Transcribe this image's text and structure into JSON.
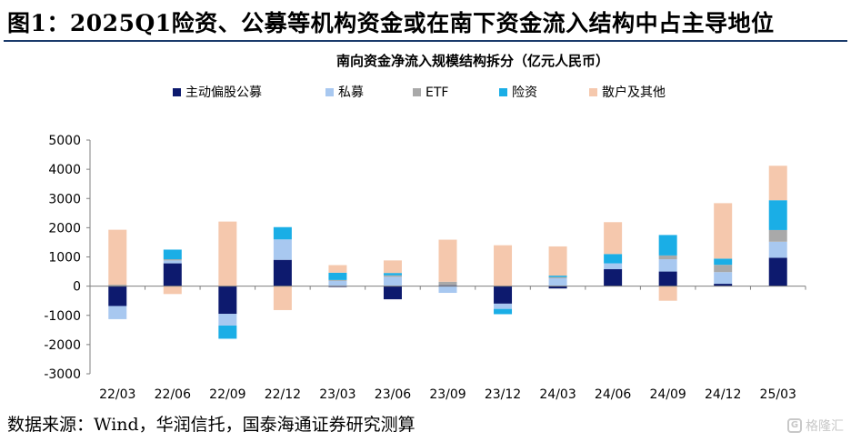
{
  "figure": {
    "title": "图1：2025Q1险资、公募等机构资金或在南下资金流入结构中占主导地位",
    "source": "数据来源：Wind，华润信托，国泰海通证券研究测算",
    "watermark": "格隆汇"
  },
  "chart_data": {
    "type": "bar",
    "stacked": true,
    "title": "南向资金净流入规模结构拆分（亿元人民币）",
    "xlabel": "",
    "ylabel": "",
    "ylim": [
      -3000,
      5000
    ],
    "yticks": [
      -3000,
      -2000,
      -1000,
      0,
      1000,
      2000,
      3000,
      4000,
      5000
    ],
    "legend_position": "top",
    "grid": false,
    "categories": [
      "22/03",
      "22/06",
      "22/09",
      "22/12",
      "23/03",
      "23/06",
      "23/09",
      "23/12",
      "24/03",
      "24/06",
      "24/09",
      "24/12",
      "25/03"
    ],
    "series": [
      {
        "name": "主动偏股公募",
        "color": "#0d1a6e",
        "values": [
          -680,
          780,
          -950,
          900,
          -30,
          -450,
          30,
          -600,
          -80,
          580,
          500,
          80,
          970
        ]
      },
      {
        "name": "私募",
        "color": "#a8c8f0",
        "values": [
          -450,
          100,
          -400,
          700,
          180,
          320,
          -230,
          -180,
          270,
          200,
          420,
          400,
          550
        ]
      },
      {
        "name": "ETF",
        "color": "#a9a9a9",
        "values": [
          50,
          40,
          0,
          0,
          30,
          50,
          120,
          0,
          40,
          0,
          130,
          250,
          400
        ]
      },
      {
        "name": "险资",
        "color": "#1aaee6",
        "values": [
          0,
          330,
          -450,
          420,
          250,
          80,
          0,
          -180,
          50,
          320,
          700,
          210,
          1020
        ]
      },
      {
        "name": "散户及其他",
        "color": "#f5c8ad",
        "values": [
          1880,
          -270,
          2210,
          -820,
          260,
          430,
          1440,
          1400,
          1000,
          1090,
          -500,
          1900,
          1180
        ]
      }
    ]
  }
}
